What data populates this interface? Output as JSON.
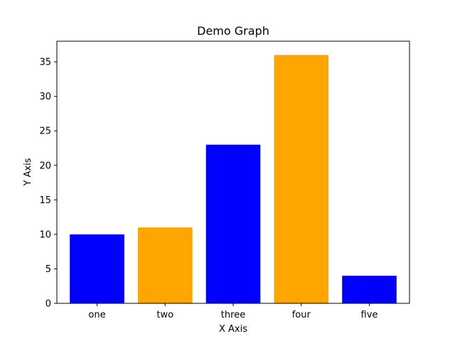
{
  "chart_data": {
    "type": "bar",
    "title": "Demo Graph",
    "xlabel": "X Axis",
    "ylabel": "Y Axis",
    "categories": [
      "one",
      "two",
      "three",
      "four",
      "five"
    ],
    "values": [
      10,
      11,
      23,
      36,
      4
    ],
    "bar_colors": [
      "#0000ff",
      "#ffa500",
      "#0000ff",
      "#ffa500",
      "#0000ff"
    ],
    "ylim": [
      0,
      38
    ],
    "yticks": [
      0,
      5,
      10,
      15,
      20,
      25,
      30,
      35
    ],
    "grid": false,
    "legend": false
  }
}
